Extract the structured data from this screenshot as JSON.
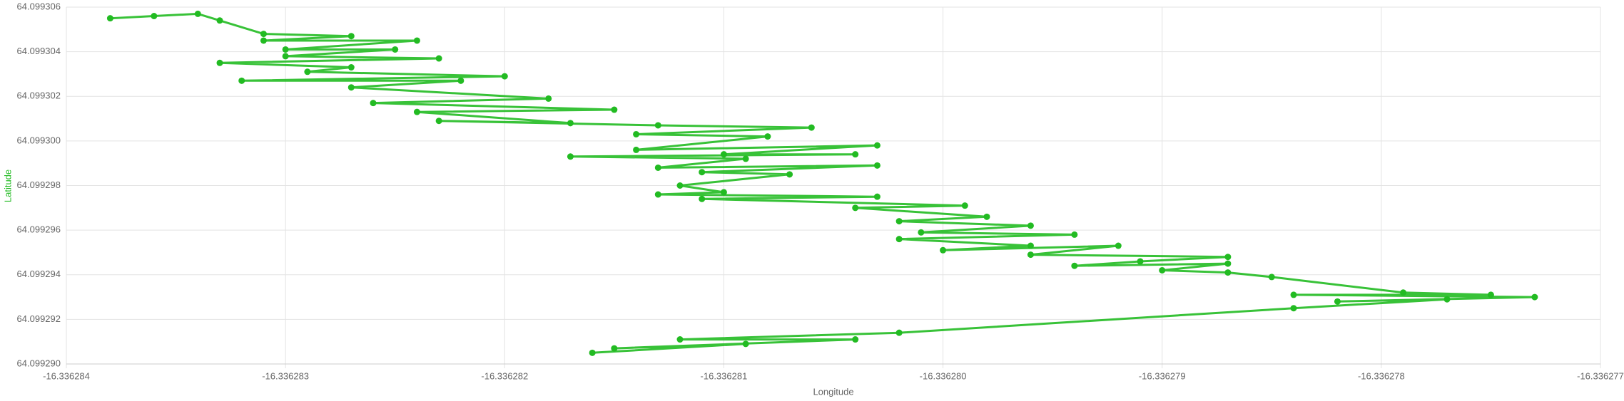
{
  "chart_data": {
    "type": "line",
    "x_label": "Longitude",
    "y_label": "Latitude",
    "color": "#22bb22",
    "grid": true,
    "x": [
      -16.3362838,
      -16.3362836,
      -16.3362834,
      -16.3362833,
      -16.3362831,
      -16.3362827,
      -16.3362831,
      -16.3362824,
      -16.336283,
      -16.3362825,
      -16.336283,
      -16.3362823,
      -16.3362833,
      -16.3362827,
      -16.3362829,
      -16.336282,
      -16.3362832,
      -16.3362822,
      -16.3362827,
      -16.3362818,
      -16.3362826,
      -16.3362815,
      -16.3362824,
      -16.3362817,
      -16.3362823,
      -16.3362813,
      -16.3362806,
      -16.3362814,
      -16.3362808,
      -16.3362814,
      -16.3362803,
      -16.336281,
      -16.3362804,
      -16.3362817,
      -16.3362809,
      -16.3362813,
      -16.3362803,
      -16.3362811,
      -16.3362807,
      -16.3362812,
      -16.336281,
      -16.3362813,
      -16.3362803,
      -16.3362811,
      -16.3362799,
      -16.3362804,
      -16.3362798,
      -16.3362802,
      -16.3362796,
      -16.3362801,
      -16.3362794,
      -16.3362802,
      -16.3362796,
      -16.33628,
      -16.3362792,
      -16.3362796,
      -16.3362787,
      -16.3362791,
      -16.3362794,
      -16.3362787,
      -16.336279,
      -16.3362787,
      -16.3362785,
      -16.3362779,
      -16.3362775,
      -16.3362784,
      -16.3362773,
      -16.3362782,
      -16.3362777,
      -16.3362784,
      -16.3362802,
      -16.3362812,
      -16.3362804,
      -16.3362815,
      -16.3362809,
      -16.3362816
    ],
    "values": [
      64.0993055,
      64.0993056,
      64.0993057,
      64.0993054,
      64.0993048,
      64.0993047,
      64.0993045,
      64.0993045,
      64.0993041,
      64.0993041,
      64.0993038,
      64.0993037,
      64.0993035,
      64.0993033,
      64.0993031,
      64.0993029,
      64.0993027,
      64.0993027,
      64.0993024,
      64.0993019,
      64.0993017,
      64.0993014,
      64.0993013,
      64.0993008,
      64.0993009,
      64.0993007,
      64.0993006,
      64.0993003,
      64.0993002,
      64.0992996,
      64.0992998,
      64.0992994,
      64.0992994,
      64.0992993,
      64.0992992,
      64.0992988,
      64.0992989,
      64.0992986,
      64.0992985,
      64.099298,
      64.0992977,
      64.0992976,
      64.0992975,
      64.0992974,
      64.0992971,
      64.099297,
      64.0992966,
      64.0992964,
      64.0992962,
      64.0992959,
      64.0992958,
      64.0992956,
      64.0992953,
      64.0992951,
      64.0992953,
      64.0992949,
      64.0992948,
      64.0992946,
      64.0992944,
      64.0992945,
      64.0992942,
      64.0992941,
      64.0992939,
      64.0992932,
      64.0992931,
      64.0992931,
      64.099293,
      64.0992928,
      64.0992929,
      64.0992925,
      64.0992914,
      64.0992911,
      64.0992911,
      64.0992907,
      64.0992909,
      64.0992905
    ],
    "xlim": [
      -16.336284,
      -16.336277
    ],
    "xticks": [
      -16.336284,
      -16.336283,
      -16.336282,
      -16.336281,
      {
        "value": -16.33628,
        "label": "-16.336280"
      },
      -16.336279,
      -16.336278,
      -16.336277
    ],
    "ylim": [
      64.09929,
      64.099306
    ],
    "yticks": [
      {
        "value": 64.09929,
        "label": "64.099290"
      },
      64.099292,
      64.099294,
      64.099296,
      64.099298,
      {
        "value": 64.0993,
        "label": "64.099300"
      },
      64.099302,
      64.099304,
      64.099306
    ]
  }
}
